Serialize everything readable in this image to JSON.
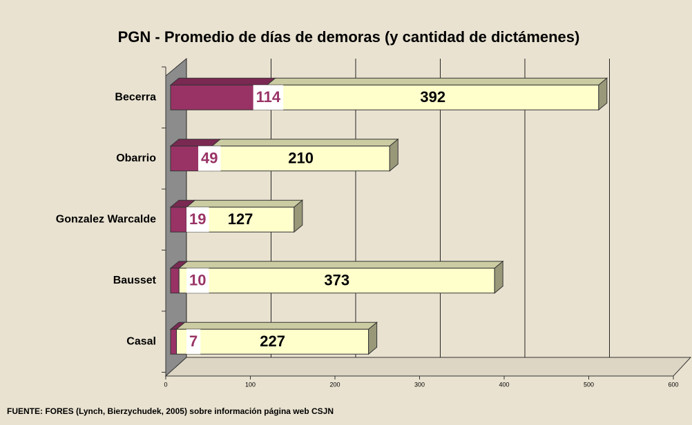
{
  "chart_data": {
    "type": "bar",
    "orientation": "horizontal",
    "stacked": true,
    "title": "PGN - Promedio de días de demoras (y cantidad de dictámenes)",
    "categories": [
      "Becerra",
      "Obarrio",
      "Gonzalez Warcalde",
      "Bausset",
      "Casal"
    ],
    "series": [
      {
        "color": "#993366",
        "values": [
          114,
          49,
          19,
          10,
          7
        ]
      },
      {
        "color": "#ffffcc",
        "values": [
          392,
          210,
          127,
          373,
          227
        ]
      }
    ],
    "xlim": [
      0,
      600
    ],
    "xticks": [
      0,
      100,
      200,
      300,
      400,
      500,
      600
    ],
    "grid": true,
    "source": "FUENTE: FORES (Lynch, Bierzychudek, 2005) sobre información página web CSJN"
  }
}
